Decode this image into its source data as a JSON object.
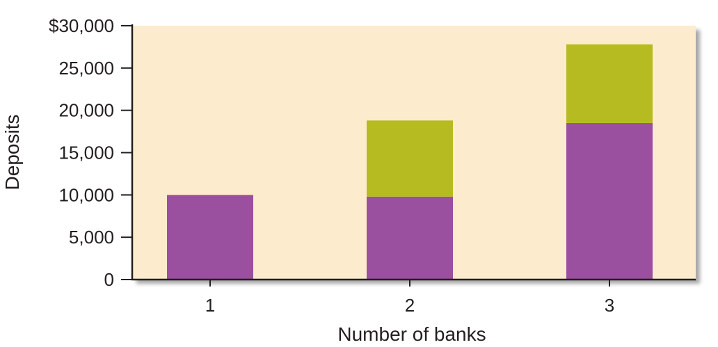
{
  "chart_data": {
    "type": "bar",
    "stacked": true,
    "categories": [
      "1",
      "2",
      "3"
    ],
    "series": [
      {
        "values": [
          10000,
          9800,
          18500
        ],
        "color": "#9b4f9f"
      },
      {
        "values": [
          0,
          9000,
          9300
        ],
        "color": "#b5bb20"
      }
    ],
    "xlabel": "Number of banks",
    "ylabel": "Deposits",
    "ylim": [
      0,
      30000
    ],
    "yticks": [
      0,
      5000,
      10000,
      15000,
      20000,
      25000,
      30000
    ],
    "ytick_labels": [
      "0",
      "5,000",
      "10,000",
      "15,000",
      "20,000",
      "25,000",
      "$30,000"
    ],
    "grid": false,
    "legend": "none",
    "plot_background": "#fdebcd",
    "axis_color": "#231f20"
  }
}
